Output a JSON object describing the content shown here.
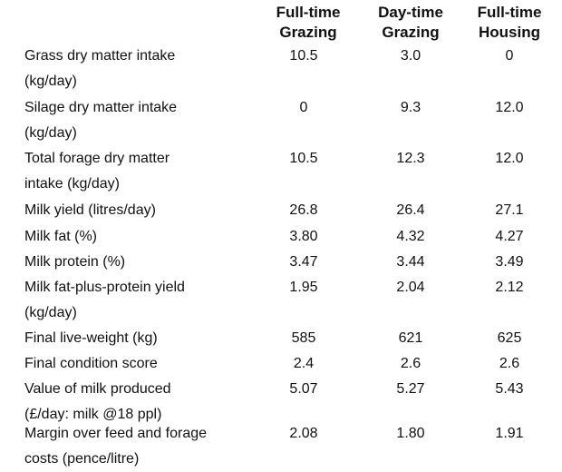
{
  "columns": [
    "Full-time\nGrazing",
    "Day-time\nGrazing",
    "Full-time\nHousing"
  ],
  "rows": [
    {
      "label": "Grass dry matter intake\n(kg/day)",
      "values": [
        "10.5",
        "3.0",
        "0"
      ]
    },
    {
      "label": "Silage dry matter intake\n(kg/day)",
      "values": [
        "0",
        "9.3",
        "12.0"
      ]
    },
    {
      "label": "Total forage dry matter\nintake (kg/day)",
      "values": [
        "10.5",
        "12.3",
        "12.0"
      ]
    },
    {
      "label": "Milk yield (litres/day)",
      "values": [
        "26.8",
        "26.4",
        "27.1"
      ]
    },
    {
      "label": "Milk fat (%)",
      "values": [
        "3.80",
        "4.32",
        "4.27"
      ]
    },
    {
      "label": "Milk protein (%)",
      "values": [
        "3.47",
        "3.44",
        "3.49"
      ]
    },
    {
      "label": "Milk fat-plus-protein yield\n(kg/day)",
      "values": [
        "1.95",
        "2.04",
        "2.12"
      ]
    },
    {
      "label": "Final live-weight (kg)",
      "values": [
        "585",
        "621",
        "625"
      ]
    },
    {
      "label": "Final condition score",
      "values": [
        "2.4",
        "2.6",
        "2.6"
      ]
    },
    {
      "label": "Value of milk produced\n(£/day: milk @18 ppl)",
      "values": [
        "5.07",
        "5.27",
        "5.43"
      ]
    },
    {
      "label": "Margin over feed and forage\ncosts (pence/litre)",
      "values": [
        "2.08",
        "1.80",
        "1.91"
      ]
    }
  ]
}
